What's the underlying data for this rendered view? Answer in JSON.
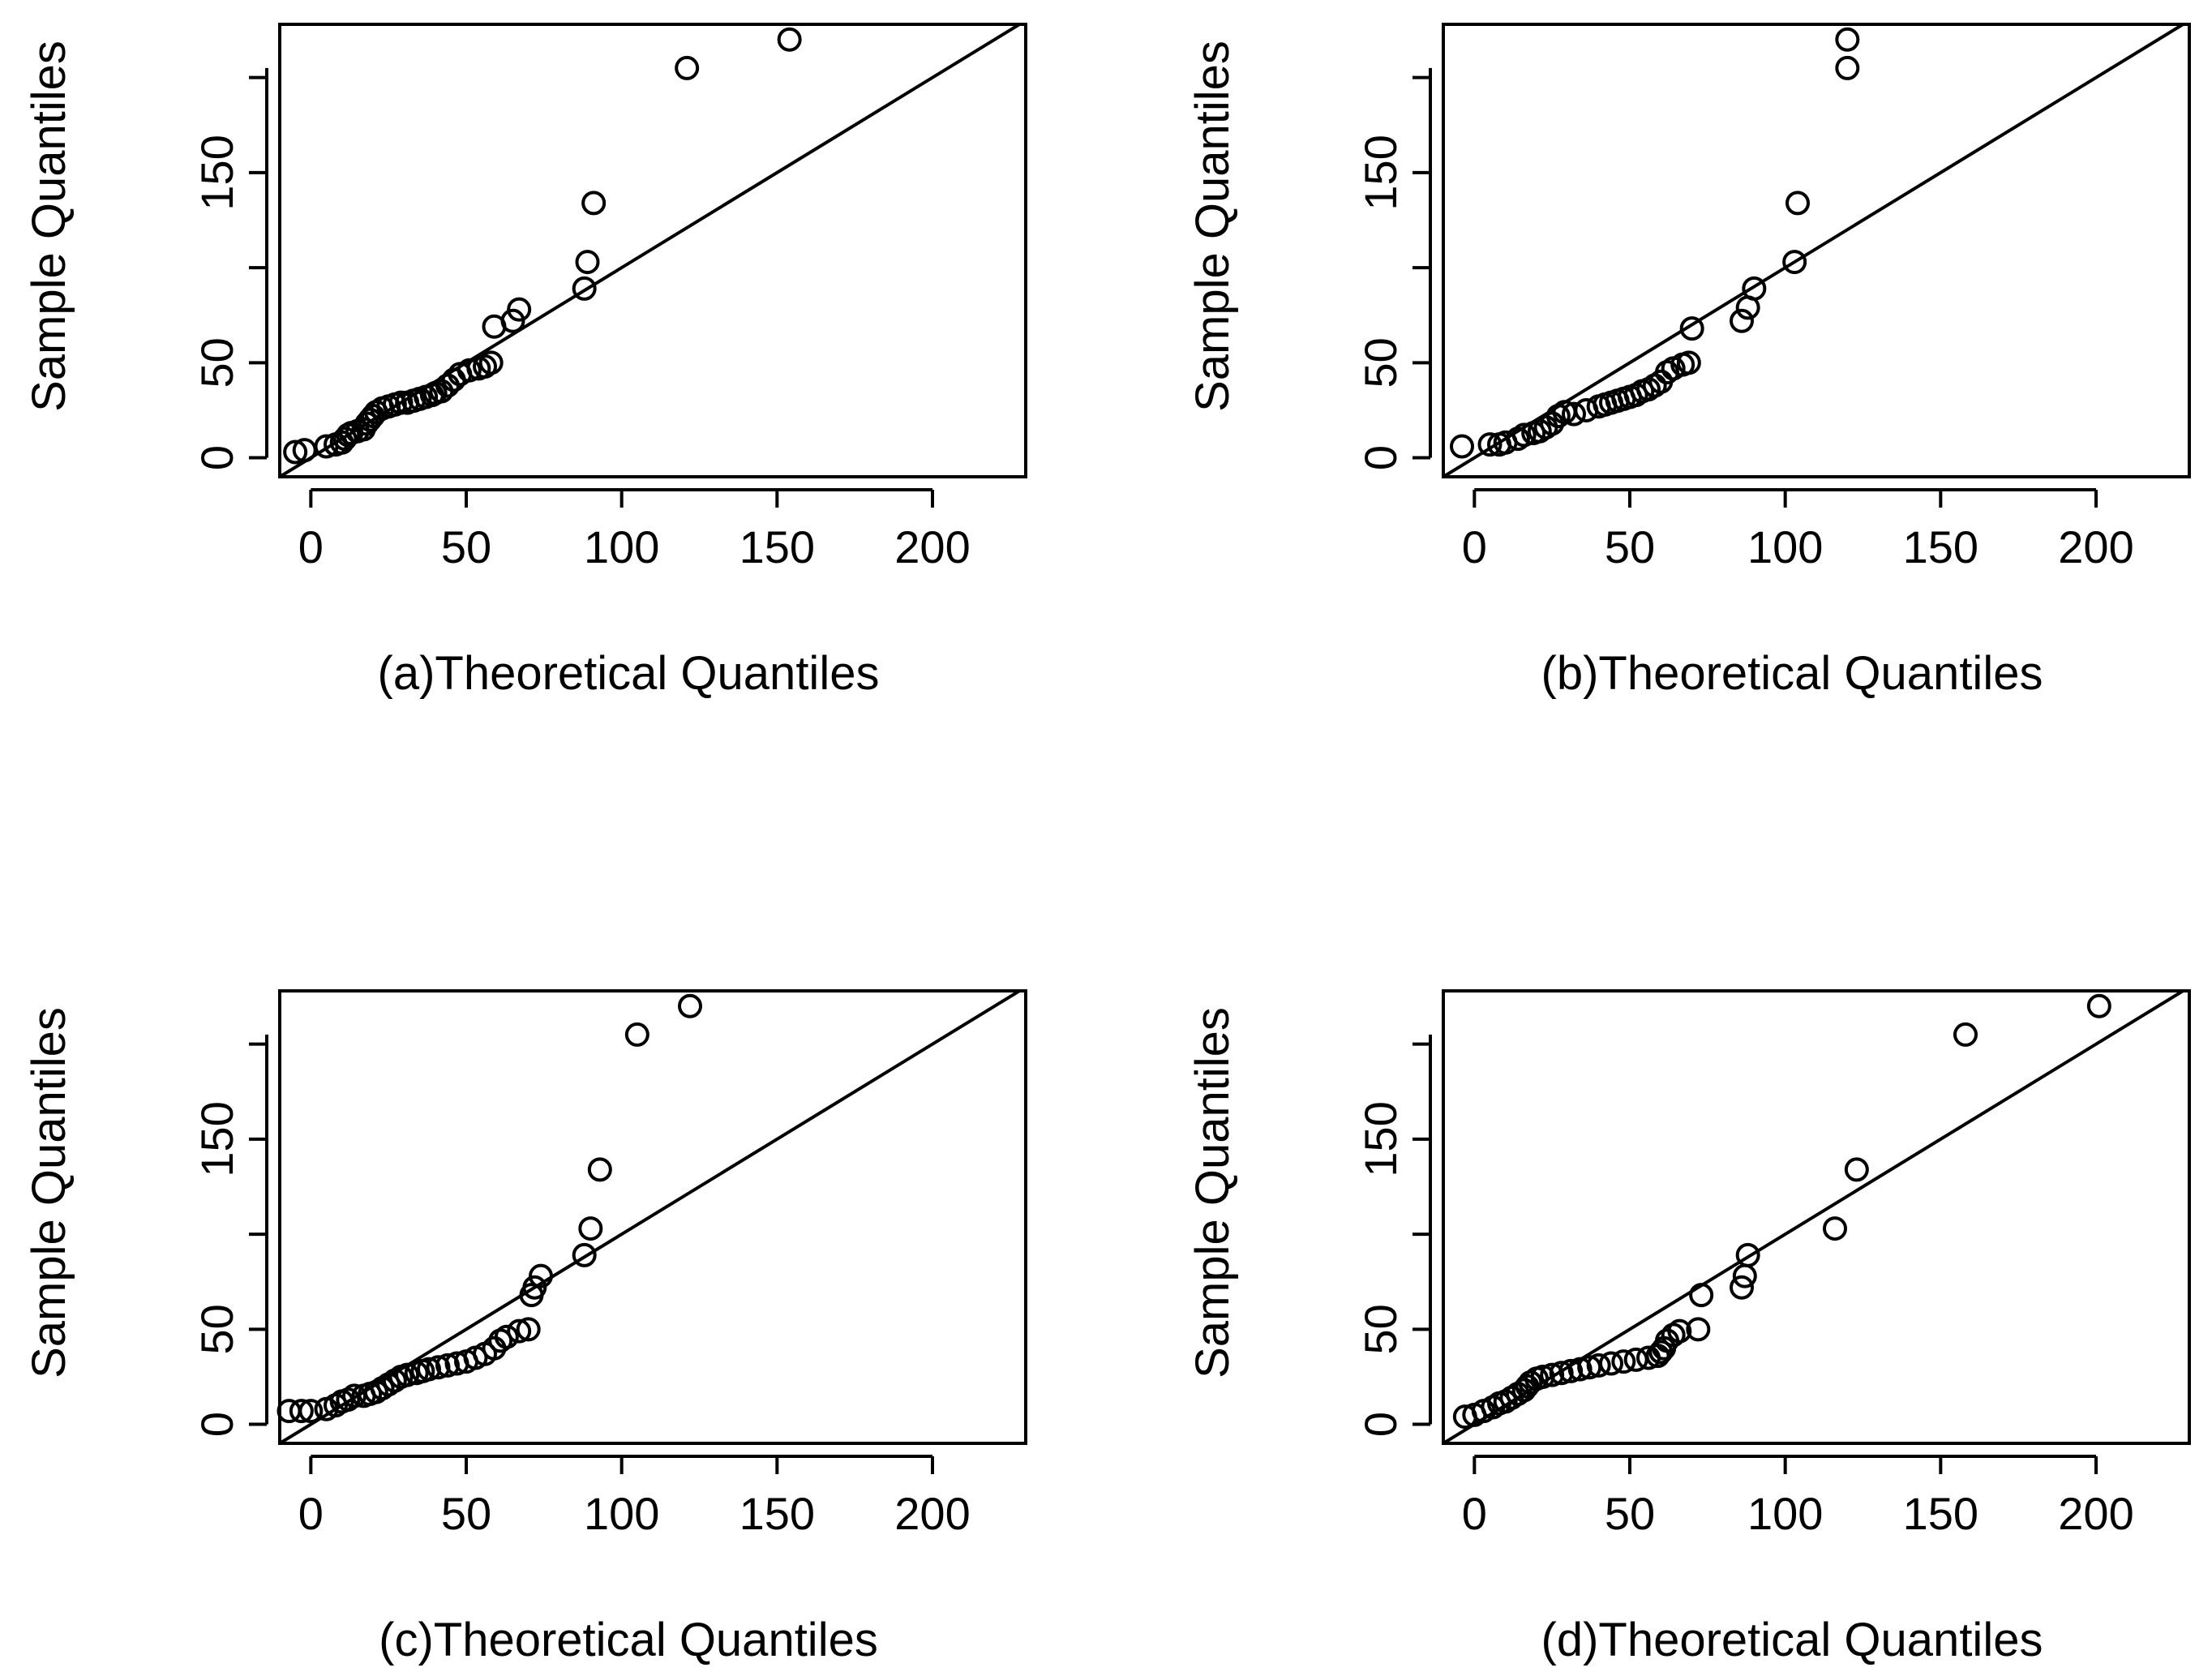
{
  "figure": {
    "ink_color": "#000000",
    "background": "#ffffff"
  },
  "chart_data": [
    {
      "panel": "a",
      "type": "scatter",
      "title": "",
      "xlabel": "(a)Theoretical Quantiles",
      "ylabel": "Sample Quantiles",
      "xlim": [
        -10,
        230
      ],
      "ylim": [
        -10,
        228
      ],
      "xticks": [
        0,
        50,
        100,
        150,
        200
      ],
      "yticks": [
        0,
        50,
        150
      ],
      "grid": false,
      "reference_line": {
        "slope": 1,
        "intercept": 0
      },
      "points": [
        [
          -5,
          3
        ],
        [
          -2,
          4
        ],
        [
          5,
          6
        ],
        [
          8,
          7
        ],
        [
          10,
          8
        ],
        [
          11,
          10
        ],
        [
          12,
          12
        ],
        [
          13,
          13
        ],
        [
          15,
          14
        ],
        [
          17,
          15
        ],
        [
          18,
          18
        ],
        [
          19,
          20
        ],
        [
          20,
          22
        ],
        [
          21,
          24
        ],
        [
          23,
          26
        ],
        [
          25,
          27
        ],
        [
          27,
          28
        ],
        [
          29,
          29
        ],
        [
          31,
          29
        ],
        [
          33,
          30
        ],
        [
          35,
          31
        ],
        [
          37,
          32
        ],
        [
          39,
          33
        ],
        [
          40,
          34
        ],
        [
          42,
          35
        ],
        [
          44,
          38
        ],
        [
          46,
          41
        ],
        [
          48,
          44
        ],
        [
          51,
          46
        ],
        [
          54,
          47
        ],
        [
          56,
          48
        ],
        [
          58,
          50
        ],
        [
          59,
          69
        ],
        [
          65,
          72
        ],
        [
          67,
          78
        ],
        [
          88,
          89
        ],
        [
          89,
          103
        ],
        [
          91,
          134
        ],
        [
          121,
          205
        ],
        [
          154,
          220
        ]
      ]
    },
    {
      "panel": "b",
      "type": "scatter",
      "title": "",
      "xlabel": "(b)Theoretical Quantiles",
      "ylabel": "Sample Quantiles",
      "xlim": [
        -10,
        230
      ],
      "ylim": [
        -10,
        228
      ],
      "xticks": [
        0,
        50,
        100,
        150,
        200
      ],
      "yticks": [
        0,
        50,
        150
      ],
      "grid": false,
      "reference_line": {
        "slope": 1,
        "intercept": 0
      },
      "points": [
        [
          -4,
          6
        ],
        [
          5,
          7
        ],
        [
          8,
          7
        ],
        [
          10,
          8
        ],
        [
          14,
          10
        ],
        [
          16,
          12
        ],
        [
          19,
          13
        ],
        [
          21,
          14
        ],
        [
          23,
          16
        ],
        [
          25,
          18
        ],
        [
          27,
          22
        ],
        [
          29,
          24
        ],
        [
          32,
          23
        ],
        [
          36,
          25
        ],
        [
          40,
          27
        ],
        [
          42,
          28
        ],
        [
          44,
          29
        ],
        [
          46,
          30
        ],
        [
          48,
          31
        ],
        [
          50,
          32
        ],
        [
          52,
          33
        ],
        [
          54,
          35
        ],
        [
          56,
          36
        ],
        [
          58,
          38
        ],
        [
          60,
          40
        ],
        [
          62,
          45
        ],
        [
          64,
          47
        ],
        [
          67,
          49
        ],
        [
          69,
          50
        ],
        [
          70,
          68
        ],
        [
          86,
          72
        ],
        [
          88,
          79
        ],
        [
          90,
          89
        ],
        [
          103,
          103
        ],
        [
          104,
          134
        ],
        [
          120,
          205
        ],
        [
          120,
          220
        ]
      ]
    },
    {
      "panel": "c",
      "type": "scatter",
      "title": "",
      "xlabel": "(c)Theoretical Quantiles",
      "ylabel": "Sample Quantiles",
      "xlim": [
        -10,
        230
      ],
      "ylim": [
        -10,
        228
      ],
      "xticks": [
        0,
        50,
        100,
        150,
        200
      ],
      "yticks": [
        0,
        50,
        150
      ],
      "grid": false,
      "reference_line": {
        "slope": 1,
        "intercept": 0
      },
      "points": [
        [
          -7,
          7
        ],
        [
          -3,
          7
        ],
        [
          0,
          7
        ],
        [
          5,
          8
        ],
        [
          8,
          10
        ],
        [
          10,
          12
        ],
        [
          12,
          13
        ],
        [
          14,
          15
        ],
        [
          17,
          15
        ],
        [
          19,
          16
        ],
        [
          21,
          17
        ],
        [
          23,
          19
        ],
        [
          25,
          21
        ],
        [
          27,
          23
        ],
        [
          29,
          25
        ],
        [
          31,
          26
        ],
        [
          34,
          27
        ],
        [
          36,
          28
        ],
        [
          38,
          29
        ],
        [
          41,
          30
        ],
        [
          44,
          31
        ],
        [
          47,
          32
        ],
        [
          50,
          33
        ],
        [
          53,
          35
        ],
        [
          56,
          37
        ],
        [
          59,
          40
        ],
        [
          61,
          44
        ],
        [
          63,
          46
        ],
        [
          67,
          49
        ],
        [
          70,
          50
        ],
        [
          71,
          68
        ],
        [
          72,
          72
        ],
        [
          74,
          78
        ],
        [
          88,
          89
        ],
        [
          90,
          103
        ],
        [
          93,
          134
        ],
        [
          105,
          205
        ],
        [
          122,
          220
        ]
      ]
    },
    {
      "panel": "d",
      "type": "scatter",
      "title": "",
      "xlabel": "(d)Theoretical Quantiles",
      "ylabel": "Sample Quantiles",
      "xlim": [
        -10,
        230
      ],
      "ylim": [
        -10,
        228
      ],
      "xticks": [
        0,
        50,
        100,
        150,
        200
      ],
      "yticks": [
        0,
        50,
        150
      ],
      "grid": false,
      "reference_line": {
        "slope": 1,
        "intercept": 0
      },
      "points": [
        [
          -3,
          4
        ],
        [
          0,
          5
        ],
        [
          3,
          7
        ],
        [
          6,
          9
        ],
        [
          8,
          11
        ],
        [
          10,
          12
        ],
        [
          12,
          14
        ],
        [
          14,
          16
        ],
        [
          16,
          18
        ],
        [
          17,
          20
        ],
        [
          18,
          22
        ],
        [
          20,
          24
        ],
        [
          22,
          25
        ],
        [
          25,
          26
        ],
        [
          28,
          27
        ],
        [
          31,
          28
        ],
        [
          34,
          29
        ],
        [
          37,
          30
        ],
        [
          40,
          31
        ],
        [
          44,
          32
        ],
        [
          48,
          33
        ],
        [
          52,
          34
        ],
        [
          56,
          35
        ],
        [
          59,
          36
        ],
        [
          60,
          38
        ],
        [
          61,
          40
        ],
        [
          62,
          44
        ],
        [
          64,
          47
        ],
        [
          66,
          49
        ],
        [
          72,
          50
        ],
        [
          73,
          68
        ],
        [
          86,
          72
        ],
        [
          87,
          78
        ],
        [
          88,
          89
        ],
        [
          116,
          103
        ],
        [
          123,
          134
        ],
        [
          158,
          205
        ],
        [
          201,
          220
        ]
      ]
    }
  ]
}
